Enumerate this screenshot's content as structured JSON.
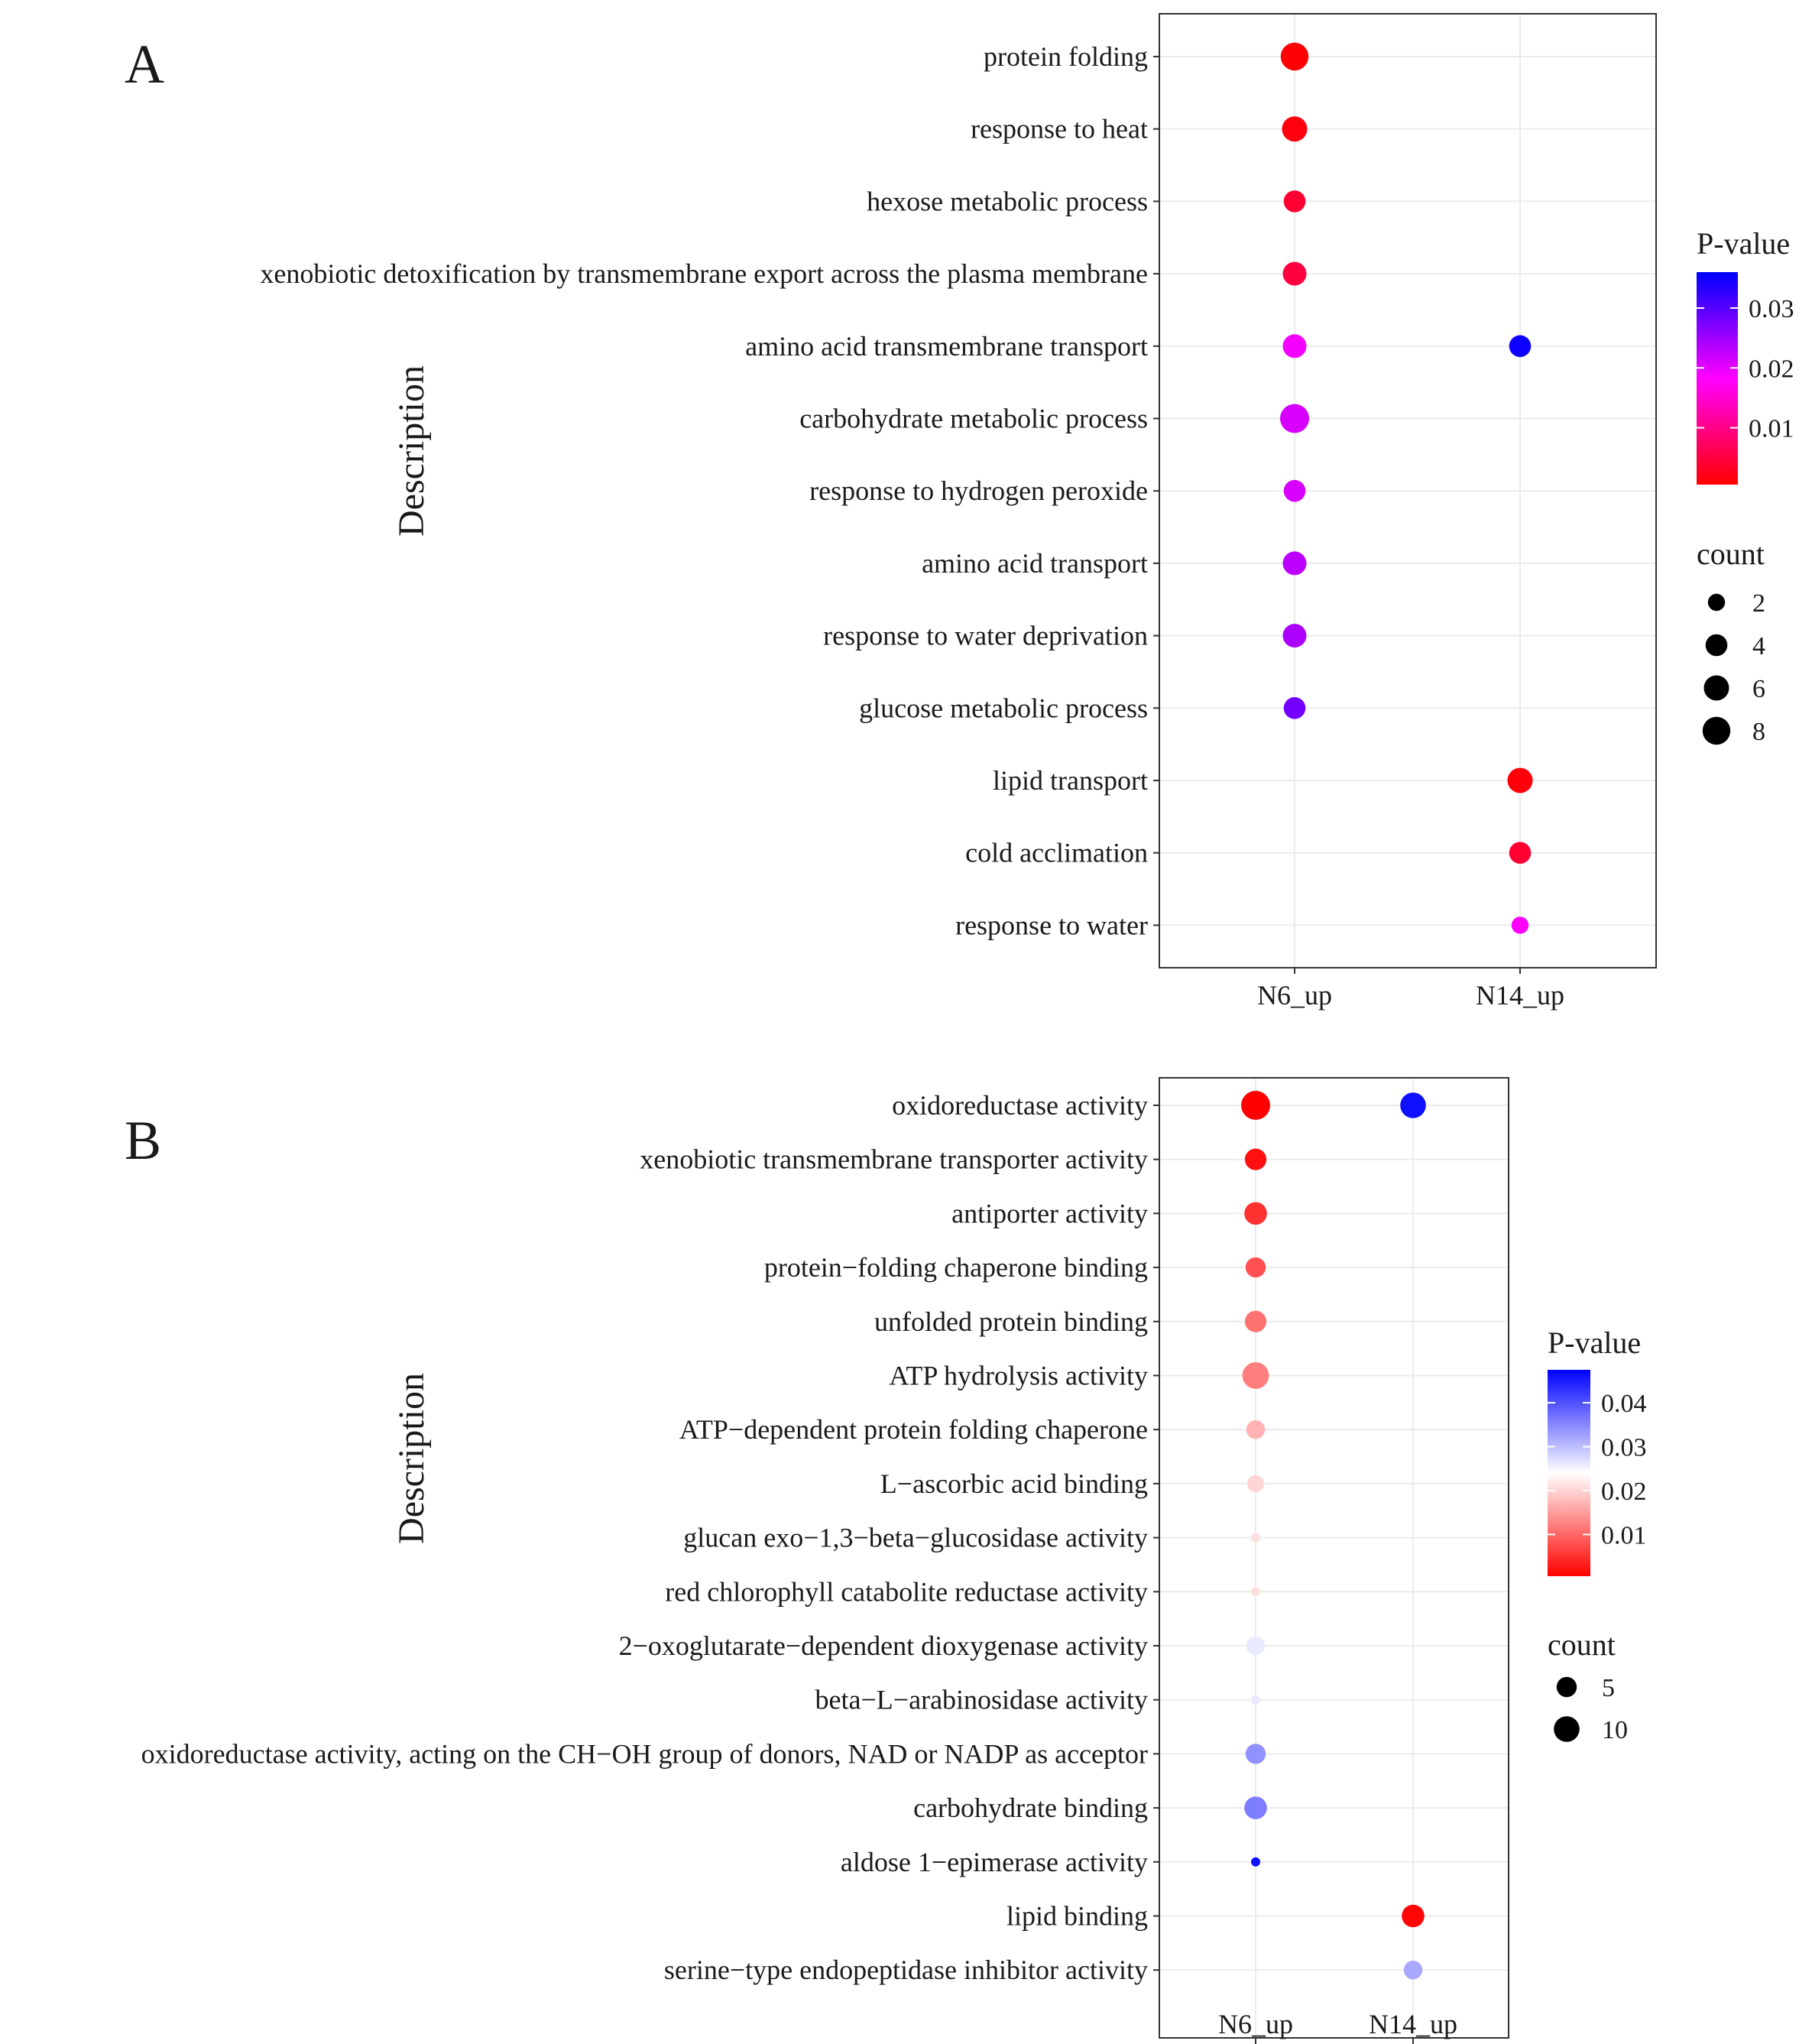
{
  "figure": {
    "panels": [
      "A",
      "B"
    ]
  },
  "chart_data": [
    {
      "type": "scatter",
      "panel": "A",
      "xlabel": "",
      "ylabel": "Description",
      "categories_x": [
        "N6_up",
        "N14_up"
      ],
      "categories_y": [
        "protein folding",
        "response to heat",
        "hexose metabolic process",
        "xenobiotic detoxification by transmembrane export across the plasma membrane",
        "amino acid transmembrane transport",
        "carbohydrate metabolic process",
        "response to hydrogen peroxide",
        "amino acid transport",
        "response to water deprivation",
        "glucose metabolic process",
        "lipid transport",
        "cold acclimation",
        "response to water"
      ],
      "points": [
        {
          "x": "N6_up",
          "y": "protein folding",
          "count": 8,
          "pvalue": 0.0008
        },
        {
          "x": "N6_up",
          "y": "response to heat",
          "count": 6,
          "pvalue": 0.0015
        },
        {
          "x": "N6_up",
          "y": "hexose metabolic process",
          "count": 4,
          "pvalue": 0.004
        },
        {
          "x": "N6_up",
          "y": "xenobiotic detoxification by transmembrane export across the plasma membrane",
          "count": 5,
          "pvalue": 0.005
        },
        {
          "x": "N6_up",
          "y": "amino acid transmembrane transport",
          "count": 5,
          "pvalue": 0.019
        },
        {
          "x": "N14_up",
          "y": "amino acid transmembrane transport",
          "count": 4,
          "pvalue": 0.035
        },
        {
          "x": "N6_up",
          "y": "carbohydrate metabolic process",
          "count": 9,
          "pvalue": 0.021
        },
        {
          "x": "N6_up",
          "y": "response to hydrogen peroxide",
          "count": 4,
          "pvalue": 0.021
        },
        {
          "x": "N6_up",
          "y": "amino acid transport",
          "count": 5,
          "pvalue": 0.023
        },
        {
          "x": "N6_up",
          "y": "response to water deprivation",
          "count": 5,
          "pvalue": 0.024
        },
        {
          "x": "N6_up",
          "y": "glucose metabolic process",
          "count": 4,
          "pvalue": 0.028
        },
        {
          "x": "N14_up",
          "y": "lipid transport",
          "count": 6,
          "pvalue": 0.0012
        },
        {
          "x": "N14_up",
          "y": "cold acclimation",
          "count": 4,
          "pvalue": 0.004
        },
        {
          "x": "N14_up",
          "y": "response to water",
          "count": 2,
          "pvalue": 0.018
        }
      ],
      "color_scale": {
        "title": "P-value",
        "domain": [
          0.0005,
          0.036
        ],
        "ticks": [
          0.01,
          0.02,
          0.03
        ],
        "tick_labels": [
          "0.01",
          "0.02",
          "0.03"
        ],
        "colors": [
          "#ff0000",
          "#ff00ff",
          "#0000ff"
        ]
      },
      "size_legend": {
        "title": "count",
        "values": [
          2,
          4,
          6,
          8
        ],
        "labels": [
          "2",
          "4",
          "6",
          "8"
        ]
      },
      "size_range": [
        1,
        9
      ]
    },
    {
      "type": "scatter",
      "panel": "B",
      "xlabel": "",
      "ylabel": "Description",
      "categories_x": [
        "N6_up",
        "N14_up"
      ],
      "categories_y": [
        "oxidoreductase activity",
        "xenobiotic transmembrane transporter activity",
        "antiporter activity",
        "protein−folding chaperone binding",
        "unfolded protein binding",
        "ATP hydrolysis activity",
        "ATP−dependent protein folding chaperone",
        "L−ascorbic acid binding",
        "glucan exo−1,3−beta−glucosidase activity",
        "red chlorophyll catabolite reductase activity",
        "2−oxoglutarate−dependent dioxygenase activity",
        "beta−L−arabinosidase activity",
        "oxidoreductase activity, acting on the CH−OH group of donors, NAD or NADP as acceptor",
        "carbohydrate binding",
        "aldose 1−epimerase activity",
        "lipid binding",
        "serine−type endopeptidase inhibitor activity"
      ],
      "points": [
        {
          "x": "N6_up",
          "y": "oxidoreductase activity",
          "count": 14,
          "pvalue": 0.0005
        },
        {
          "x": "N14_up",
          "y": "oxidoreductase activity",
          "count": 10,
          "pvalue": 0.046
        },
        {
          "x": "N6_up",
          "y": "xenobiotic transmembrane transporter activity",
          "count": 6,
          "pvalue": 0.002
        },
        {
          "x": "N6_up",
          "y": "antiporter activity",
          "count": 7,
          "pvalue": 0.005
        },
        {
          "x": "N6_up",
          "y": "protein−folding chaperone binding",
          "count": 5,
          "pvalue": 0.008
        },
        {
          "x": "N6_up",
          "y": "unfolded protein binding",
          "count": 6,
          "pvalue": 0.011
        },
        {
          "x": "N6_up",
          "y": "ATP hydrolysis activity",
          "count": 11,
          "pvalue": 0.012
        },
        {
          "x": "N6_up",
          "y": "ATP−dependent protein folding chaperone",
          "count": 4,
          "pvalue": 0.017
        },
        {
          "x": "N6_up",
          "y": "L−ascorbic acid binding",
          "count": 3,
          "pvalue": 0.02
        },
        {
          "x": "N6_up",
          "y": "glucan exo−1,3−beta−glucosidase activity",
          "count": 1,
          "pvalue": 0.021
        },
        {
          "x": "N6_up",
          "y": "red chlorophyll catabolite reductase activity",
          "count": 1,
          "pvalue": 0.021
        },
        {
          "x": "N6_up",
          "y": "2−oxoglutarate−dependent dioxygenase activity",
          "count": 4,
          "pvalue": 0.026
        },
        {
          "x": "N6_up",
          "y": "beta−L−arabinosidase activity",
          "count": 1,
          "pvalue": 0.026
        },
        {
          "x": "N6_up",
          "y": "oxidoreductase activity, acting on the CH−OH group of donors, NAD or NADP as acceptor",
          "count": 5,
          "pvalue": 0.034
        },
        {
          "x": "N6_up",
          "y": "carbohydrate binding",
          "count": 7,
          "pvalue": 0.036
        },
        {
          "x": "N6_up",
          "y": "aldose 1−epimerase activity",
          "count": 1,
          "pvalue": 0.046
        },
        {
          "x": "N14_up",
          "y": "lipid binding",
          "count": 7,
          "pvalue": 0.001
        },
        {
          "x": "N14_up",
          "y": "serine−type endopeptidase inhibitor activity",
          "count": 4,
          "pvalue": 0.032
        }
      ],
      "color_scale": {
        "title": "P-value",
        "domain": [
          0.0005,
          0.0475
        ],
        "ticks": [
          0.01,
          0.02,
          0.03,
          0.04
        ],
        "tick_labels": [
          "0.01",
          "0.02",
          "0.03",
          "0.04"
        ],
        "colors": [
          "#ff0000",
          "#ffffff",
          "#0000ff"
        ]
      },
      "size_legend": {
        "title": "count",
        "values": [
          5,
          10
        ],
        "labels": [
          "5",
          "10"
        ]
      },
      "size_range": [
        1,
        14
      ]
    }
  ]
}
